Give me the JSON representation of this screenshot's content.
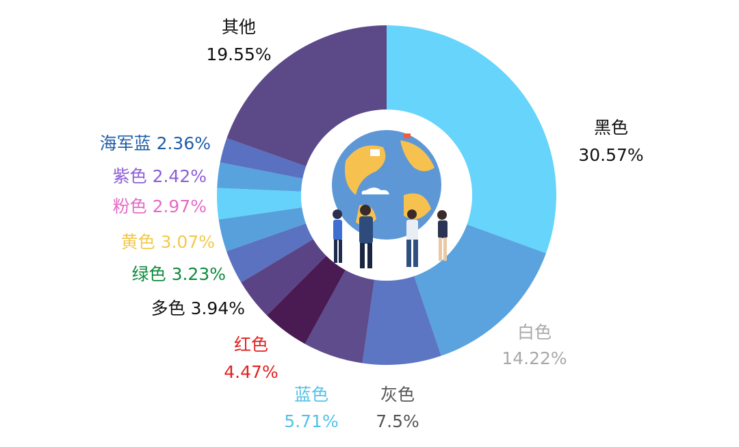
{
  "chart_data": {
    "type": "pie",
    "title": "",
    "donut": true,
    "slices": [
      {
        "name": "黑色",
        "value": 30.57,
        "display": "30.57%",
        "color": "#66d4fb",
        "label_color": "#111111"
      },
      {
        "name": "白色",
        "value": 14.22,
        "display": "14.22%",
        "color": "#5aa3df",
        "label_color": "#a8a8a8"
      },
      {
        "name": "灰色",
        "value": 7.5,
        "display": "7.5%",
        "color": "#5c76c4",
        "label_color": "#555555"
      },
      {
        "name": "蓝色",
        "value": 5.71,
        "display": "5.71%",
        "color": "#5e4c8c",
        "label_color": "#54c1e8"
      },
      {
        "name": "红色",
        "value": 4.47,
        "display": "4.47%",
        "color": "#4a1a52",
        "label_color": "#e02020"
      },
      {
        "name": "多色",
        "value": 3.94,
        "display": "3.94%",
        "color": "#5a4486",
        "label_color": "#111111"
      },
      {
        "name": "绿色",
        "value": 3.23,
        "display": "3.23%",
        "color": "#5a72c0",
        "label_color": "#0e8a3c"
      },
      {
        "name": "黄色",
        "value": 3.07,
        "display": "3.07%",
        "color": "#58a0dc",
        "label_color": "#f2c94c"
      },
      {
        "name": "粉色",
        "value": 2.97,
        "display": "2.97%",
        "color": "#64d2fa",
        "label_color": "#e36cc6"
      },
      {
        "name": "紫色",
        "value": 2.42,
        "display": "2.42%",
        "color": "#58a2de",
        "label_color": "#8b5fd6"
      },
      {
        "name": "海军蓝",
        "value": 2.36,
        "display": "2.36%",
        "color": "#5a70c0",
        "label_color": "#1f5ca8"
      },
      {
        "name": "其他",
        "value": 19.55,
        "display": "19.55%",
        "color": "#5c4988",
        "label_color": "#111111"
      }
    ],
    "start_angle_deg": 0,
    "direction": "clockwise",
    "center_illustration": "globe-people-illustration"
  }
}
